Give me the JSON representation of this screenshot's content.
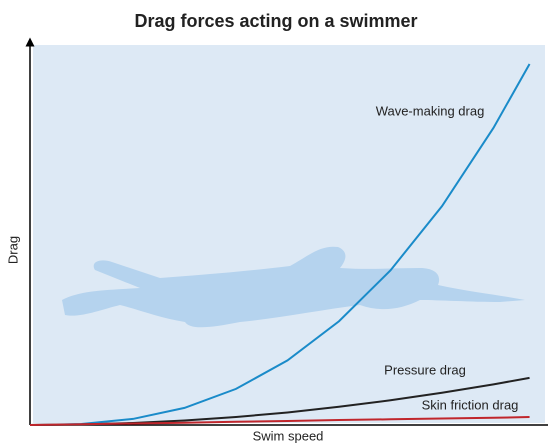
{
  "chart_data": {
    "type": "line",
    "title": "Drag forces acting on a swimmer",
    "x_label": "Swim speed",
    "y_label": "Drag",
    "xlim": [
      0,
      100
    ],
    "ylim": [
      0,
      100
    ],
    "x": [
      0,
      10,
      20,
      30,
      40,
      50,
      60,
      70,
      80,
      90,
      97
    ],
    "series": [
      {
        "name": "Wave-making drag",
        "color": "#1a8bc9",
        "values": [
          0,
          0.26,
          1.6,
          4.5,
          9.5,
          17,
          27.3,
          40.7,
          57.6,
          78.2,
          95
        ]
      },
      {
        "name": "Pressure drag",
        "color": "#222222",
        "values": [
          0,
          0.13,
          0.53,
          1.2,
          2.1,
          3.3,
          4.8,
          6.5,
          8.5,
          10.7,
          12.4
        ]
      },
      {
        "name": "Skin friction drag",
        "color": "#c0262c",
        "values": [
          0,
          0.2,
          0.4,
          0.6,
          0.85,
          1.05,
          1.3,
          1.5,
          1.7,
          1.9,
          2.1
        ]
      }
    ]
  }
}
